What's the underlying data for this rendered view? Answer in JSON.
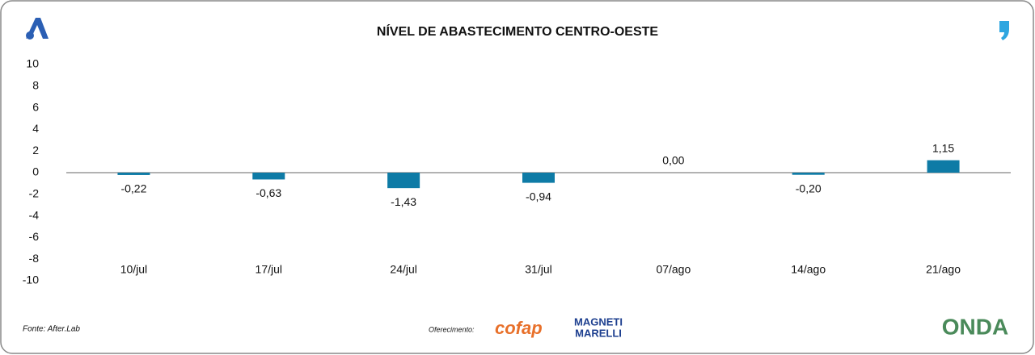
{
  "chart_data": {
    "type": "bar",
    "title": "NÍVEL DE ABASTECIMENTO CENTRO-OESTE",
    "categories": [
      "10/jul",
      "17/jul",
      "24/jul",
      "31/jul",
      "07/ago",
      "14/ago",
      "21/ago"
    ],
    "values": [
      -0.22,
      -0.63,
      -1.43,
      -0.94,
      0.0,
      -0.2,
      1.15
    ],
    "value_labels": [
      "-0,22",
      "-0,63",
      "-1,43",
      "-0,94",
      "0,00",
      "-0,20",
      "1,15"
    ],
    "color": "#0e7ba6",
    "ylim": [
      -10,
      10
    ],
    "yticks": [
      10,
      8,
      6,
      4,
      2,
      0,
      -2,
      -4,
      -6,
      -8,
      -10
    ],
    "grid": false,
    "source": "Fonte: After.Lab",
    "sponsor_label": "Oferecimento:",
    "sponsors": [
      "cofap",
      "MAGNETI",
      "MARELLI"
    ],
    "brand": "ONDA"
  }
}
